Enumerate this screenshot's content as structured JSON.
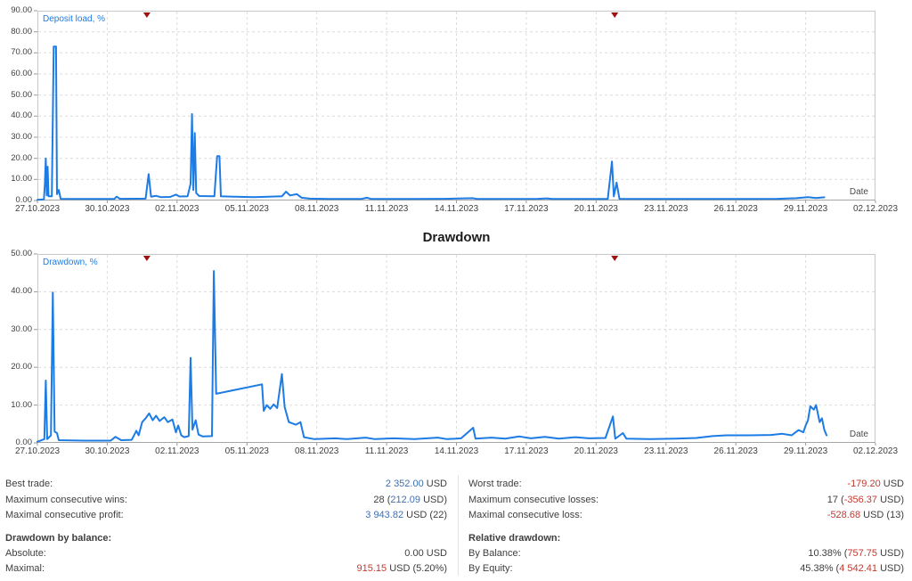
{
  "colors": {
    "line_blue": "#1d7be4",
    "value_blue": "#3f6fb0",
    "value_red": "#c13a30",
    "marker_red": "#9e1212",
    "grid": "#dcdcdc",
    "border": "#c8c8c8",
    "axis": "#a6a6a6",
    "text": "#3e3e3e"
  },
  "chart_data": [
    {
      "type": "line",
      "name": "deposit-load",
      "series_label": "Deposit load, %",
      "date_label": "Date",
      "ylabel": "Deposit load, %",
      "xlabel": "Date",
      "ymax": 90,
      "ystep": 10,
      "ylim": [
        0,
        90
      ],
      "x_range_days": 36,
      "x_ticks": [
        "27.10.2023",
        "30.10.2023",
        "02.11.2023",
        "05.11.2023",
        "08.11.2023",
        "11.11.2023",
        "14.11.2023",
        "17.11.2023",
        "20.11.2023",
        "23.11.2023",
        "26.11.2023",
        "29.11.2023",
        "02.12.2023"
      ],
      "grid": true,
      "markers_days": [
        4.7,
        24.8
      ],
      "points": [
        [
          0,
          0.3
        ],
        [
          0.28,
          0.5
        ],
        [
          0.32,
          8
        ],
        [
          0.36,
          20
        ],
        [
          0.4,
          2.5
        ],
        [
          0.44,
          16
        ],
        [
          0.48,
          2
        ],
        [
          0.62,
          2
        ],
        [
          0.7,
          73
        ],
        [
          0.8,
          73
        ],
        [
          0.84,
          3
        ],
        [
          0.92,
          5
        ],
        [
          1,
          0.8
        ],
        [
          1.5,
          0.7
        ],
        [
          3.3,
          0.7
        ],
        [
          3.4,
          1.8
        ],
        [
          3.55,
          0.8
        ],
        [
          4.65,
          0.9
        ],
        [
          4.78,
          12.5
        ],
        [
          4.88,
          1.8
        ],
        [
          5.1,
          2.2
        ],
        [
          5.3,
          1.6
        ],
        [
          5.7,
          1.7
        ],
        [
          5.95,
          2.8
        ],
        [
          6.1,
          1.9
        ],
        [
          6.45,
          2
        ],
        [
          6.58,
          8
        ],
        [
          6.64,
          41
        ],
        [
          6.7,
          5
        ],
        [
          6.76,
          32
        ],
        [
          6.82,
          3.5
        ],
        [
          6.95,
          2.1
        ],
        [
          7.6,
          2
        ],
        [
          7.72,
          21
        ],
        [
          7.82,
          21
        ],
        [
          7.88,
          2
        ],
        [
          8.5,
          1.8
        ],
        [
          9.3,
          1.6
        ],
        [
          10.5,
          2
        ],
        [
          10.68,
          4.2
        ],
        [
          10.85,
          2.4
        ],
        [
          11.15,
          3
        ],
        [
          11.35,
          1.3
        ],
        [
          11.7,
          0.9
        ],
        [
          12.5,
          0.7
        ],
        [
          13.9,
          0.7
        ],
        [
          14.15,
          1.3
        ],
        [
          14.35,
          0.7
        ],
        [
          16,
          0.7
        ],
        [
          17.5,
          0.8
        ],
        [
          18.7,
          1.1
        ],
        [
          18.9,
          0.7
        ],
        [
          21.5,
          0.8
        ],
        [
          21.9,
          1
        ],
        [
          22.1,
          0.7
        ],
        [
          24.5,
          0.7
        ],
        [
          24.68,
          18.5
        ],
        [
          24.76,
          2
        ],
        [
          24.88,
          8.5
        ],
        [
          25,
          0.8
        ],
        [
          26.5,
          0.7
        ],
        [
          28,
          0.7
        ],
        [
          30,
          0.7
        ],
        [
          31.8,
          0.8
        ],
        [
          32.6,
          1.1
        ],
        [
          33.1,
          1.6
        ],
        [
          33.45,
          1.2
        ],
        [
          33.8,
          1.5
        ]
      ]
    },
    {
      "type": "line",
      "name": "drawdown",
      "title": "Drawdown",
      "series_label": "Drawdown, %",
      "date_label": "Date",
      "ylabel": "Drawdown, %",
      "xlabel": "Date",
      "ymax": 50,
      "ystep": 10,
      "ylim": [
        0,
        50
      ],
      "x_range_days": 36,
      "x_ticks": [
        "27.10.2023",
        "30.10.2023",
        "02.11.2023",
        "05.11.2023",
        "08.11.2023",
        "11.11.2023",
        "14.11.2023",
        "17.11.2023",
        "20.11.2023",
        "23.11.2023",
        "26.11.2023",
        "29.11.2023",
        "02.12.2023"
      ],
      "grid": true,
      "markers_days": [
        4.7,
        24.8
      ],
      "points": [
        [
          0,
          0.3
        ],
        [
          0.3,
          1
        ],
        [
          0.36,
          16.5
        ],
        [
          0.42,
          1
        ],
        [
          0.58,
          2
        ],
        [
          0.66,
          39.8
        ],
        [
          0.74,
          3
        ],
        [
          0.84,
          2.6
        ],
        [
          0.92,
          0.7
        ],
        [
          2,
          0.6
        ],
        [
          3.15,
          0.6
        ],
        [
          3.35,
          1.6
        ],
        [
          3.6,
          0.7
        ],
        [
          4.05,
          0.8
        ],
        [
          4.25,
          3.2
        ],
        [
          4.35,
          2
        ],
        [
          4.5,
          5.5
        ],
        [
          4.65,
          6.5
        ],
        [
          4.8,
          7.8
        ],
        [
          4.95,
          6
        ],
        [
          5.1,
          7.2
        ],
        [
          5.25,
          5.8
        ],
        [
          5.45,
          6.8
        ],
        [
          5.6,
          5.5
        ],
        [
          5.8,
          6.2
        ],
        [
          5.95,
          2.8
        ],
        [
          6.05,
          4.6
        ],
        [
          6.18,
          2
        ],
        [
          6.3,
          1.5
        ],
        [
          6.5,
          1.8
        ],
        [
          6.58,
          22.5
        ],
        [
          6.66,
          3.5
        ],
        [
          6.8,
          6
        ],
        [
          6.92,
          2.2
        ],
        [
          7.1,
          1.7
        ],
        [
          7.5,
          1.8
        ],
        [
          7.58,
          45.5
        ],
        [
          7.68,
          13
        ],
        [
          9.65,
          15.5
        ],
        [
          9.72,
          8.5
        ],
        [
          9.85,
          10
        ],
        [
          10,
          9
        ],
        [
          10.15,
          10.2
        ],
        [
          10.3,
          9.2
        ],
        [
          10.5,
          18.2
        ],
        [
          10.62,
          9.5
        ],
        [
          10.8,
          5.5
        ],
        [
          11.1,
          4.8
        ],
        [
          11.3,
          5.5
        ],
        [
          11.45,
          1.5
        ],
        [
          11.9,
          1
        ],
        [
          12.8,
          1.2
        ],
        [
          13.3,
          1
        ],
        [
          14.1,
          1.4
        ],
        [
          14.5,
          1
        ],
        [
          15.3,
          1.2
        ],
        [
          16.2,
          1
        ],
        [
          17.2,
          1.4
        ],
        [
          17.6,
          1
        ],
        [
          18.2,
          1.2
        ],
        [
          18.72,
          4
        ],
        [
          18.82,
          1.1
        ],
        [
          19.5,
          1.4
        ],
        [
          20.1,
          1.1
        ],
        [
          20.7,
          1.7
        ],
        [
          21.2,
          1.2
        ],
        [
          21.8,
          1.6
        ],
        [
          22.4,
          1.1
        ],
        [
          23.1,
          1.5
        ],
        [
          23.7,
          1.2
        ],
        [
          24.4,
          1.3
        ],
        [
          24.72,
          7
        ],
        [
          24.82,
          1.1
        ],
        [
          25.15,
          2.6
        ],
        [
          25.3,
          1.1
        ],
        [
          26.3,
          1
        ],
        [
          27.4,
          1.1
        ],
        [
          28.3,
          1.3
        ],
        [
          29,
          1.8
        ],
        [
          29.6,
          2
        ],
        [
          30.6,
          2
        ],
        [
          31.5,
          2.1
        ],
        [
          32,
          2.4
        ],
        [
          32.4,
          2
        ],
        [
          32.7,
          3.4
        ],
        [
          32.9,
          2.8
        ],
        [
          33,
          4.6
        ],
        [
          33.1,
          6
        ],
        [
          33.2,
          9.7
        ],
        [
          33.35,
          8.8
        ],
        [
          33.45,
          10
        ],
        [
          33.6,
          5.5
        ],
        [
          33.7,
          6.5
        ],
        [
          33.8,
          3.5
        ],
        [
          33.9,
          2
        ]
      ]
    }
  ],
  "stats": {
    "rows": [
      {
        "col": 0,
        "y": 0,
        "label": "Best trade:",
        "bold": false,
        "parts": [
          {
            "t": "2 352.00",
            "c": "blue"
          },
          {
            "t": " USD",
            "c": "plain"
          }
        ]
      },
      {
        "col": 1,
        "y": 0,
        "label": "Worst trade:",
        "bold": false,
        "parts": [
          {
            "t": "-179.20",
            "c": "red"
          },
          {
            "t": " USD",
            "c": "plain"
          }
        ]
      },
      {
        "col": 0,
        "y": 1,
        "label": "Maximum consecutive wins:",
        "bold": false,
        "parts": [
          {
            "t": "28 (",
            "c": "plain"
          },
          {
            "t": "212.09",
            "c": "blue"
          },
          {
            "t": " USD)",
            "c": "plain"
          }
        ]
      },
      {
        "col": 1,
        "y": 1,
        "label": "Maximum consecutive losses:",
        "bold": false,
        "parts": [
          {
            "t": "17 (",
            "c": "plain"
          },
          {
            "t": "-356.37",
            "c": "red"
          },
          {
            "t": " USD)",
            "c": "plain"
          }
        ]
      },
      {
        "col": 0,
        "y": 2,
        "label": "Maximal consecutive profit:",
        "bold": false,
        "parts": [
          {
            "t": "3 943.82",
            "c": "blue"
          },
          {
            "t": " USD (22)",
            "c": "plain"
          }
        ]
      },
      {
        "col": 1,
        "y": 2,
        "label": "Maximal consecutive loss:",
        "bold": false,
        "parts": [
          {
            "t": "-528.68",
            "c": "red"
          },
          {
            "t": " USD (13)",
            "c": "plain"
          }
        ]
      },
      {
        "col": 0,
        "y": 3,
        "label": "Drawdown by balance:",
        "bold": true,
        "parts": []
      },
      {
        "col": 1,
        "y": 3,
        "label": "Relative drawdown:",
        "bold": true,
        "parts": []
      },
      {
        "col": 0,
        "y": 4,
        "label": "Absolute:",
        "bold": false,
        "parts": [
          {
            "t": "0.00 USD",
            "c": "plain"
          }
        ]
      },
      {
        "col": 1,
        "y": 4,
        "label": "By Balance:",
        "bold": false,
        "parts": [
          {
            "t": "10.38% (",
            "c": "plain"
          },
          {
            "t": "757.75",
            "c": "red"
          },
          {
            "t": " USD)",
            "c": "plain"
          }
        ]
      },
      {
        "col": 0,
        "y": 5,
        "label": "Maximal:",
        "bold": false,
        "parts": [
          {
            "t": "915.15",
            "c": "red"
          },
          {
            "t": " USD (5.20%)",
            "c": "plain"
          }
        ]
      },
      {
        "col": 1,
        "y": 5,
        "label": "By Equity:",
        "bold": false,
        "parts": [
          {
            "t": "45.38% (",
            "c": "plain"
          },
          {
            "t": "4 542.41",
            "c": "red"
          },
          {
            "t": " USD)",
            "c": "plain"
          }
        ]
      }
    ]
  }
}
